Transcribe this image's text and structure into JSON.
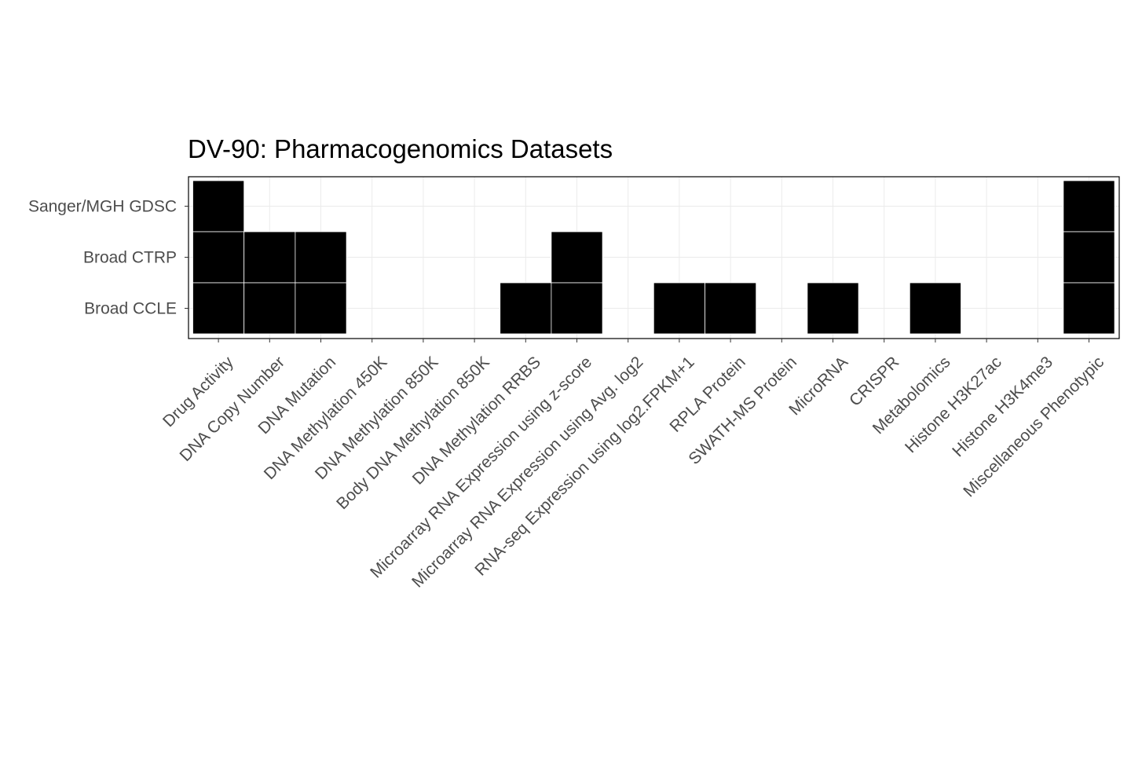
{
  "chart_data": {
    "type": "heatmap",
    "title": "DV-90: Pharmacogenomics Datasets",
    "x_categories": [
      "Drug Activity",
      "DNA Copy Number",
      "DNA Mutation",
      "DNA Methylation 450K",
      "DNA Methylation 850K",
      "Body DNA Methylation 850K",
      "DNA Methylation RRBS",
      "Microarray RNA Expression using z-score",
      "Microarray RNA Expression using Avg. log2",
      "RNA-seq Expression using log2.FPKM+1",
      "RPLA Protein",
      "SWATH-MS Protein",
      "MicroRNA",
      "CRISPR",
      "Metabolomics",
      "Histone H3K27ac",
      "Histone H3K4me3",
      "Miscellaneous Phenotypic"
    ],
    "y_categories": [
      "Sanger/MGH GDSC",
      "Broad CTRP",
      "Broad CCLE"
    ],
    "cells": [
      {
        "y": "Sanger/MGH GDSC",
        "x": "Drug Activity",
        "value": 1
      },
      {
        "y": "Sanger/MGH GDSC",
        "x": "Miscellaneous Phenotypic",
        "value": 1
      },
      {
        "y": "Broad CTRP",
        "x": "Drug Activity",
        "value": 1
      },
      {
        "y": "Broad CTRP",
        "x": "DNA Copy Number",
        "value": 1
      },
      {
        "y": "Broad CTRP",
        "x": "DNA Mutation",
        "value": 1
      },
      {
        "y": "Broad CTRP",
        "x": "Microarray RNA Expression using z-score",
        "value": 1
      },
      {
        "y": "Broad CTRP",
        "x": "Miscellaneous Phenotypic",
        "value": 1
      },
      {
        "y": "Broad CCLE",
        "x": "Drug Activity",
        "value": 1
      },
      {
        "y": "Broad CCLE",
        "x": "DNA Copy Number",
        "value": 1
      },
      {
        "y": "Broad CCLE",
        "x": "DNA Mutation",
        "value": 1
      },
      {
        "y": "Broad CCLE",
        "x": "DNA Methylation RRBS",
        "value": 1
      },
      {
        "y": "Broad CCLE",
        "x": "Microarray RNA Expression using z-score",
        "value": 1
      },
      {
        "y": "Broad CCLE",
        "x": "RNA-seq Expression using log2.FPKM+1",
        "value": 1
      },
      {
        "y": "Broad CCLE",
        "x": "RPLA Protein",
        "value": 1
      },
      {
        "y": "Broad CCLE",
        "x": "MicroRNA",
        "value": 1
      },
      {
        "y": "Broad CCLE",
        "x": "Metabolomics",
        "value": 1
      },
      {
        "y": "Broad CCLE",
        "x": "Miscellaneous Phenotypic",
        "value": 1
      }
    ],
    "fill_color": "#000000",
    "cell_border_color": "#ffffff",
    "grid_color": "#ebebeb",
    "background_color": "#ffffff",
    "grid": true,
    "legend": "none"
  }
}
